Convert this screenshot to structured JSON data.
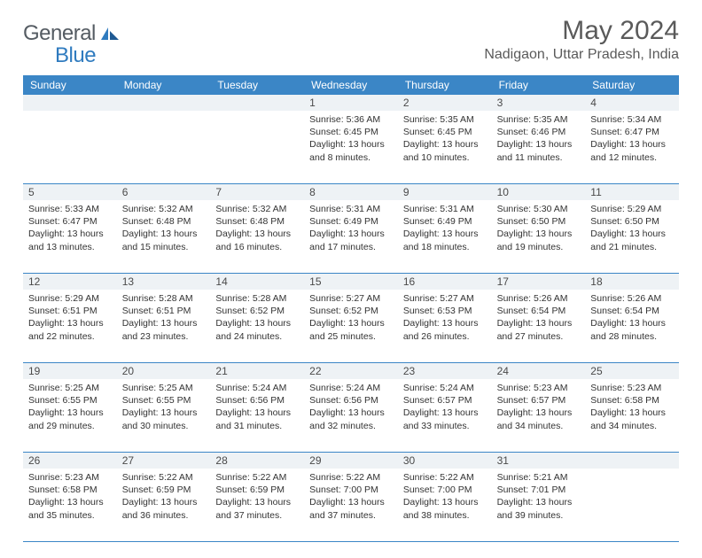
{
  "logo": {
    "general": "General",
    "blue": "Blue"
  },
  "title": "May 2024",
  "location": "Nadigaon, Uttar Pradesh, India",
  "colors": {
    "header_bg": "#3b86c6",
    "header_text": "#ffffff",
    "daynum_bg": "#eef2f5",
    "cell_text": "#333333",
    "title_text": "#5a5a5a",
    "logo_gray": "#555c63",
    "logo_blue": "#2f7bbf",
    "border": "#3b86c6"
  },
  "dayNames": [
    "Sunday",
    "Monday",
    "Tuesday",
    "Wednesday",
    "Thursday",
    "Friday",
    "Saturday"
  ],
  "weeks": [
    [
      {
        "num": "",
        "sunrise": "",
        "sunset": "",
        "daylight1": "",
        "daylight2": ""
      },
      {
        "num": "",
        "sunrise": "",
        "sunset": "",
        "daylight1": "",
        "daylight2": ""
      },
      {
        "num": "",
        "sunrise": "",
        "sunset": "",
        "daylight1": "",
        "daylight2": ""
      },
      {
        "num": "1",
        "sunrise": "Sunrise: 5:36 AM",
        "sunset": "Sunset: 6:45 PM",
        "daylight1": "Daylight: 13 hours",
        "daylight2": "and 8 minutes."
      },
      {
        "num": "2",
        "sunrise": "Sunrise: 5:35 AM",
        "sunset": "Sunset: 6:45 PM",
        "daylight1": "Daylight: 13 hours",
        "daylight2": "and 10 minutes."
      },
      {
        "num": "3",
        "sunrise": "Sunrise: 5:35 AM",
        "sunset": "Sunset: 6:46 PM",
        "daylight1": "Daylight: 13 hours",
        "daylight2": "and 11 minutes."
      },
      {
        "num": "4",
        "sunrise": "Sunrise: 5:34 AM",
        "sunset": "Sunset: 6:47 PM",
        "daylight1": "Daylight: 13 hours",
        "daylight2": "and 12 minutes."
      }
    ],
    [
      {
        "num": "5",
        "sunrise": "Sunrise: 5:33 AM",
        "sunset": "Sunset: 6:47 PM",
        "daylight1": "Daylight: 13 hours",
        "daylight2": "and 13 minutes."
      },
      {
        "num": "6",
        "sunrise": "Sunrise: 5:32 AM",
        "sunset": "Sunset: 6:48 PM",
        "daylight1": "Daylight: 13 hours",
        "daylight2": "and 15 minutes."
      },
      {
        "num": "7",
        "sunrise": "Sunrise: 5:32 AM",
        "sunset": "Sunset: 6:48 PM",
        "daylight1": "Daylight: 13 hours",
        "daylight2": "and 16 minutes."
      },
      {
        "num": "8",
        "sunrise": "Sunrise: 5:31 AM",
        "sunset": "Sunset: 6:49 PM",
        "daylight1": "Daylight: 13 hours",
        "daylight2": "and 17 minutes."
      },
      {
        "num": "9",
        "sunrise": "Sunrise: 5:31 AM",
        "sunset": "Sunset: 6:49 PM",
        "daylight1": "Daylight: 13 hours",
        "daylight2": "and 18 minutes."
      },
      {
        "num": "10",
        "sunrise": "Sunrise: 5:30 AM",
        "sunset": "Sunset: 6:50 PM",
        "daylight1": "Daylight: 13 hours",
        "daylight2": "and 19 minutes."
      },
      {
        "num": "11",
        "sunrise": "Sunrise: 5:29 AM",
        "sunset": "Sunset: 6:50 PM",
        "daylight1": "Daylight: 13 hours",
        "daylight2": "and 21 minutes."
      }
    ],
    [
      {
        "num": "12",
        "sunrise": "Sunrise: 5:29 AM",
        "sunset": "Sunset: 6:51 PM",
        "daylight1": "Daylight: 13 hours",
        "daylight2": "and 22 minutes."
      },
      {
        "num": "13",
        "sunrise": "Sunrise: 5:28 AM",
        "sunset": "Sunset: 6:51 PM",
        "daylight1": "Daylight: 13 hours",
        "daylight2": "and 23 minutes."
      },
      {
        "num": "14",
        "sunrise": "Sunrise: 5:28 AM",
        "sunset": "Sunset: 6:52 PM",
        "daylight1": "Daylight: 13 hours",
        "daylight2": "and 24 minutes."
      },
      {
        "num": "15",
        "sunrise": "Sunrise: 5:27 AM",
        "sunset": "Sunset: 6:52 PM",
        "daylight1": "Daylight: 13 hours",
        "daylight2": "and 25 minutes."
      },
      {
        "num": "16",
        "sunrise": "Sunrise: 5:27 AM",
        "sunset": "Sunset: 6:53 PM",
        "daylight1": "Daylight: 13 hours",
        "daylight2": "and 26 minutes."
      },
      {
        "num": "17",
        "sunrise": "Sunrise: 5:26 AM",
        "sunset": "Sunset: 6:54 PM",
        "daylight1": "Daylight: 13 hours",
        "daylight2": "and 27 minutes."
      },
      {
        "num": "18",
        "sunrise": "Sunrise: 5:26 AM",
        "sunset": "Sunset: 6:54 PM",
        "daylight1": "Daylight: 13 hours",
        "daylight2": "and 28 minutes."
      }
    ],
    [
      {
        "num": "19",
        "sunrise": "Sunrise: 5:25 AM",
        "sunset": "Sunset: 6:55 PM",
        "daylight1": "Daylight: 13 hours",
        "daylight2": "and 29 minutes."
      },
      {
        "num": "20",
        "sunrise": "Sunrise: 5:25 AM",
        "sunset": "Sunset: 6:55 PM",
        "daylight1": "Daylight: 13 hours",
        "daylight2": "and 30 minutes."
      },
      {
        "num": "21",
        "sunrise": "Sunrise: 5:24 AM",
        "sunset": "Sunset: 6:56 PM",
        "daylight1": "Daylight: 13 hours",
        "daylight2": "and 31 minutes."
      },
      {
        "num": "22",
        "sunrise": "Sunrise: 5:24 AM",
        "sunset": "Sunset: 6:56 PM",
        "daylight1": "Daylight: 13 hours",
        "daylight2": "and 32 minutes."
      },
      {
        "num": "23",
        "sunrise": "Sunrise: 5:24 AM",
        "sunset": "Sunset: 6:57 PM",
        "daylight1": "Daylight: 13 hours",
        "daylight2": "and 33 minutes."
      },
      {
        "num": "24",
        "sunrise": "Sunrise: 5:23 AM",
        "sunset": "Sunset: 6:57 PM",
        "daylight1": "Daylight: 13 hours",
        "daylight2": "and 34 minutes."
      },
      {
        "num": "25",
        "sunrise": "Sunrise: 5:23 AM",
        "sunset": "Sunset: 6:58 PM",
        "daylight1": "Daylight: 13 hours",
        "daylight2": "and 34 minutes."
      }
    ],
    [
      {
        "num": "26",
        "sunrise": "Sunrise: 5:23 AM",
        "sunset": "Sunset: 6:58 PM",
        "daylight1": "Daylight: 13 hours",
        "daylight2": "and 35 minutes."
      },
      {
        "num": "27",
        "sunrise": "Sunrise: 5:22 AM",
        "sunset": "Sunset: 6:59 PM",
        "daylight1": "Daylight: 13 hours",
        "daylight2": "and 36 minutes."
      },
      {
        "num": "28",
        "sunrise": "Sunrise: 5:22 AM",
        "sunset": "Sunset: 6:59 PM",
        "daylight1": "Daylight: 13 hours",
        "daylight2": "and 37 minutes."
      },
      {
        "num": "29",
        "sunrise": "Sunrise: 5:22 AM",
        "sunset": "Sunset: 7:00 PM",
        "daylight1": "Daylight: 13 hours",
        "daylight2": "and 37 minutes."
      },
      {
        "num": "30",
        "sunrise": "Sunrise: 5:22 AM",
        "sunset": "Sunset: 7:00 PM",
        "daylight1": "Daylight: 13 hours",
        "daylight2": "and 38 minutes."
      },
      {
        "num": "31",
        "sunrise": "Sunrise: 5:21 AM",
        "sunset": "Sunset: 7:01 PM",
        "daylight1": "Daylight: 13 hours",
        "daylight2": "and 39 minutes."
      },
      {
        "num": "",
        "sunrise": "",
        "sunset": "",
        "daylight1": "",
        "daylight2": ""
      }
    ]
  ]
}
